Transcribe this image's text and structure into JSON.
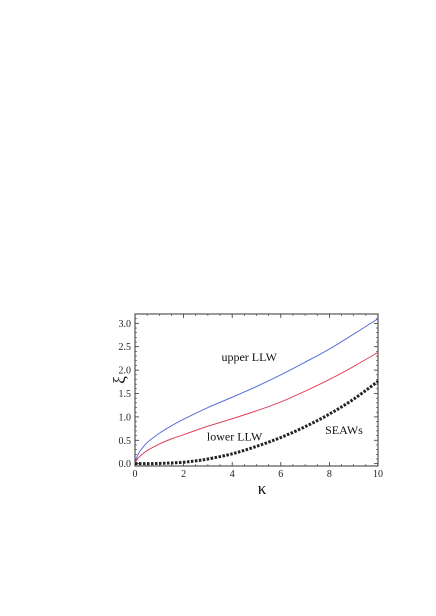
{
  "chart_data": {
    "type": "line",
    "title": "",
    "xlabel": "κ",
    "ylabel": "ξ",
    "xlim": [
      0,
      10
    ],
    "ylim": [
      -0.05,
      3.2
    ],
    "x_ticks": [
      0,
      2,
      4,
      6,
      8,
      10
    ],
    "y_ticks": [
      "0.0",
      "0.5",
      "1.0",
      "1.5",
      "2.0",
      "2.5",
      "3.0"
    ],
    "grid": false,
    "legend": "none",
    "series": [
      {
        "name": "upper LLW",
        "color": "#5a6fd8",
        "style": "solid",
        "x": [
          0,
          0.1,
          0.25,
          0.5,
          1,
          1.5,
          2,
          3,
          4,
          5,
          6,
          7,
          8,
          9,
          10
        ],
        "y": [
          0,
          0.17,
          0.3,
          0.45,
          0.65,
          0.81,
          0.95,
          1.2,
          1.42,
          1.65,
          1.9,
          2.17,
          2.45,
          2.77,
          3.1
        ]
      },
      {
        "name": "lower LLW",
        "color": "#e0425e",
        "style": "solid",
        "x": [
          0,
          0.1,
          0.25,
          0.5,
          1,
          1.5,
          2,
          3,
          4,
          5,
          6,
          7,
          8,
          9,
          10
        ],
        "y": [
          0,
          0.1,
          0.18,
          0.28,
          0.42,
          0.53,
          0.62,
          0.8,
          0.96,
          1.13,
          1.32,
          1.55,
          1.8,
          2.08,
          2.38
        ]
      },
      {
        "name": "SEAWs",
        "color": "#222222",
        "style": "dashed",
        "x": [
          0,
          0.5,
          1,
          1.5,
          2,
          2.5,
          3,
          4,
          5,
          6,
          7,
          8,
          9,
          10
        ],
        "y": [
          0,
          0,
          0.005,
          0.015,
          0.03,
          0.06,
          0.1,
          0.21,
          0.37,
          0.56,
          0.79,
          1.06,
          1.38,
          1.76
        ]
      }
    ],
    "annotations": [
      {
        "text": "upper LLW",
        "x": 4.7,
        "y": 2.2
      },
      {
        "text": "lower LLW",
        "x": 4.1,
        "y": 0.49
      },
      {
        "text": "SEAWs",
        "x": 8.6,
        "y": 0.63
      }
    ]
  }
}
